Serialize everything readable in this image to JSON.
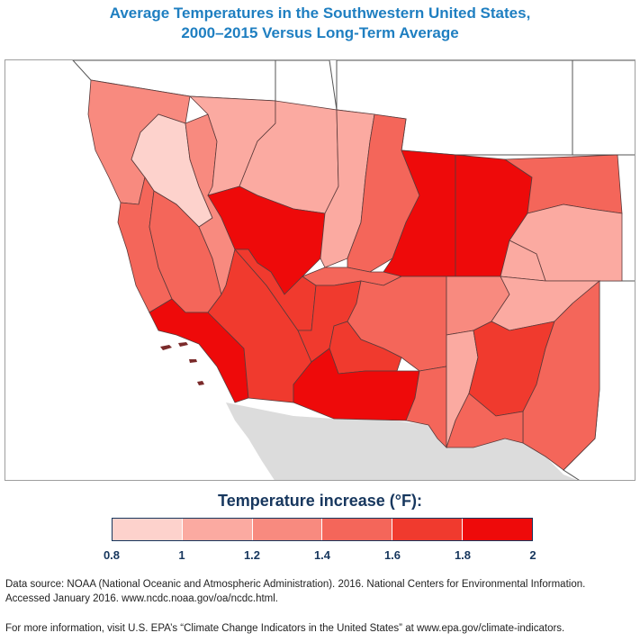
{
  "title_line1": "Average Temperatures in the Southwestern United States,",
  "title_line2": "2000–2015 Versus Long-Term Average",
  "legend": {
    "title": "Temperature increase (°F):",
    "ticks": [
      "0.8",
      "1",
      "1.2",
      "1.4",
      "1.6",
      "1.8",
      "2"
    ],
    "bins": [
      {
        "min": 0.8,
        "max": 1.0,
        "color": "#fdd2cc"
      },
      {
        "min": 1.0,
        "max": 1.2,
        "color": "#fbaaa1"
      },
      {
        "min": 1.2,
        "max": 1.4,
        "color": "#f88a7f"
      },
      {
        "min": 1.4,
        "max": 1.6,
        "color": "#f4665a"
      },
      {
        "min": 1.6,
        "max": 1.8,
        "color": "#f03a2e"
      },
      {
        "min": 1.8,
        "max": 2.0,
        "color": "#ee0a0a"
      }
    ]
  },
  "colors": {
    "outside": "#ffffff",
    "mexico": "#dcdcdc",
    "ocean": "#ffffff",
    "border": "#5b3a3a"
  },
  "source_line1": "Data source: NOAA (National Oceanic and Atmospheric Administration). 2016. National Centers for Environmental Information.",
  "source_line2": "Accessed January 2016. www.ncdc.noaa.gov/oa/ncdc.html.",
  "more_info": "For more information, visit U.S. EPA’s “Climate Change Indicators in the United States” at www.epa.gov/climate-indicators."
}
